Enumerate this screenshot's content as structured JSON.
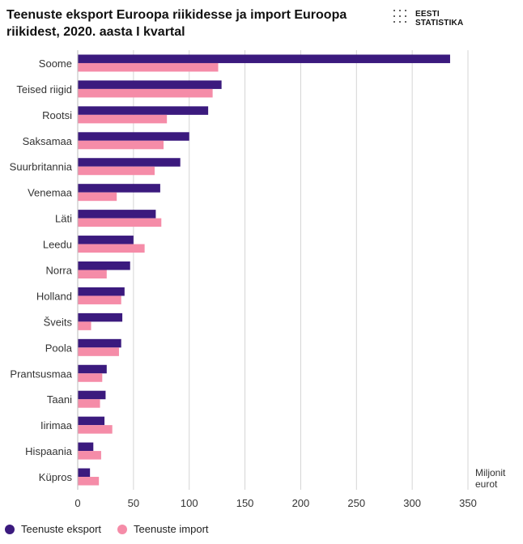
{
  "header": {
    "title": "Teenuste eksport Euroopa riikidesse ja import Euroopa riikidest, 2020. aasta I kvartal",
    "logo_line1": "EESTI",
    "logo_line2": "STATISTIKA"
  },
  "colors": {
    "export": "#3b1a7e",
    "import": "#f58ca8",
    "grid": "#d4d4d4"
  },
  "chart_data": {
    "type": "bar",
    "orientation": "horizontal",
    "title": "Teenuste eksport Euroopa riikidesse ja import Euroopa riikidest, 2020. aasta I kvartal",
    "xlabel": "Miljonit eurot",
    "xlabel_lines": [
      "Miljonit",
      "eurot"
    ],
    "xlim": [
      0,
      350
    ],
    "xticks": [
      0,
      50,
      100,
      150,
      200,
      250,
      300,
      350
    ],
    "grid": true,
    "legend_position": "bottom-left",
    "categories": [
      "Soome",
      "Teised riigid",
      "Rootsi",
      "Saksamaa",
      "Suurbritannia",
      "Venemaa",
      "Läti",
      "Leedu",
      "Norra",
      "Holland",
      "Šveits",
      "Poola",
      "Prantsusmaa",
      "Taani",
      "Iirimaa",
      "Hispaania",
      "Küpros"
    ],
    "series": [
      {
        "name": "Teenuste eksport",
        "color": "#3b1a7e",
        "values": [
          334,
          129,
          117,
          100,
          92,
          74,
          70,
          50,
          47,
          42,
          40,
          39,
          26,
          25,
          24,
          14,
          11
        ]
      },
      {
        "name": "Teenuste import",
        "color": "#f58ca8",
        "values": [
          126,
          121,
          80,
          77,
          69,
          35,
          75,
          60,
          26,
          39,
          12,
          37,
          22,
          20,
          31,
          21,
          19
        ]
      }
    ]
  }
}
